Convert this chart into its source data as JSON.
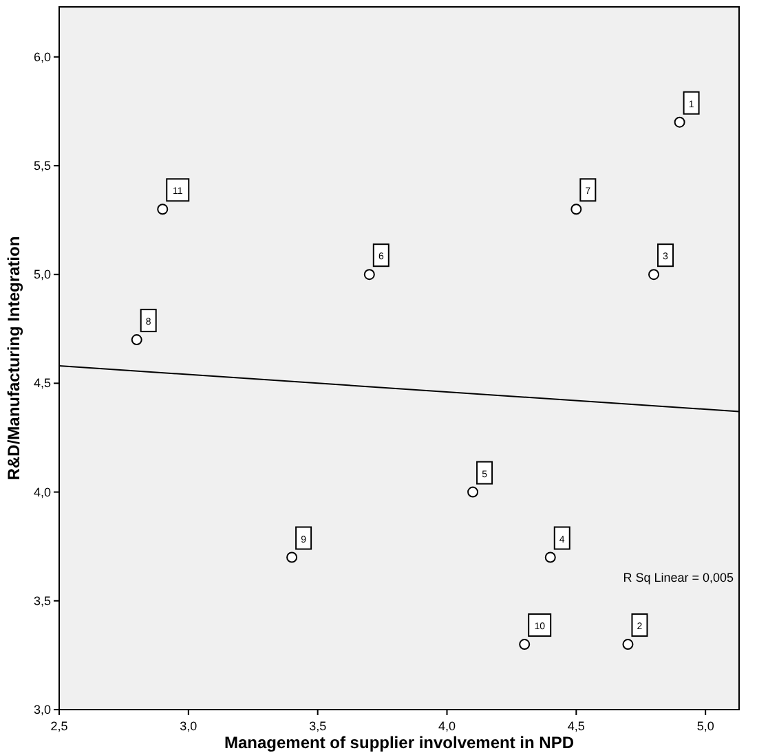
{
  "chart_data": {
    "type": "scatter",
    "xlabel": "Management of supplier involvement in NPD",
    "ylabel": "R&D/Manufacturing Integration",
    "x": [
      4.9,
      4.7,
      4.8,
      4.4,
      4.1,
      3.7,
      4.5,
      2.8,
      3.4,
      4.3,
      2.9
    ],
    "series": [
      {
        "color": "#000000",
        "marker": "circle",
        "values": [
          5.7,
          3.3,
          5.0,
          3.7,
          4.0,
          5.0,
          5.3,
          4.7,
          3.7,
          3.3,
          5.3
        ]
      },
      {
        "type": "line",
        "color": "#000000",
        "marker": "none",
        "x": [
          2.5,
          5.13
        ],
        "values": [
          4.58,
          4.37
        ]
      }
    ],
    "grid": false,
    "xlim": [
      2.5,
      5.13
    ],
    "ylim": [
      3.0,
      6.23
    ],
    "xticks": [
      {
        "value": 2.5,
        "label": "2,5"
      },
      {
        "value": 3.0,
        "label": "3,0"
      },
      {
        "value": 3.5,
        "label": "3,5"
      },
      {
        "value": 4.0,
        "label": "4,0"
      },
      {
        "value": 4.5,
        "label": "4,5"
      },
      {
        "value": 5.0,
        "label": "5,0"
      }
    ],
    "yticks": [
      {
        "value": 3.0,
        "label": "3,0"
      },
      {
        "value": 3.5,
        "label": "3,5"
      },
      {
        "value": 4.0,
        "label": "4,0"
      },
      {
        "value": 4.5,
        "label": "4,5"
      },
      {
        "value": 5.0,
        "label": "5,0"
      },
      {
        "value": 5.5,
        "label": "5,5"
      },
      {
        "value": 6.0,
        "label": "6,0"
      }
    ],
    "annotations": [
      {
        "text": "1",
        "x": 4.9,
        "y": 5.7
      },
      {
        "text": "2",
        "x": 4.7,
        "y": 3.3
      },
      {
        "text": "3",
        "x": 4.8,
        "y": 5.0
      },
      {
        "text": "4",
        "x": 4.4,
        "y": 3.7
      },
      {
        "text": "5",
        "x": 4.1,
        "y": 4.0
      },
      {
        "text": "6",
        "x": 3.7,
        "y": 5.0
      },
      {
        "text": "7",
        "x": 4.5,
        "y": 5.3
      },
      {
        "text": "8",
        "x": 2.8,
        "y": 4.7
      },
      {
        "text": "9",
        "x": 3.4,
        "y": 3.7
      },
      {
        "text": "10",
        "x": 4.3,
        "y": 3.3
      },
      {
        "text": "11",
        "x": 2.9,
        "y": 5.3
      },
      "R Sq Linear = 0,005"
    ]
  }
}
